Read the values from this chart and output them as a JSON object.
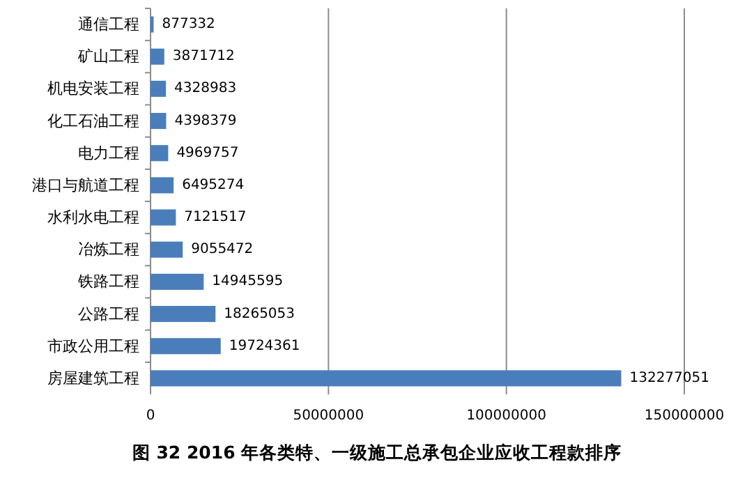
{
  "chart_data": {
    "type": "bar",
    "orientation": "horizontal",
    "title": "图 32 2016 年各类特、一级施工总承包企业应收工程款排序",
    "categories": [
      "通信工程",
      "矿山工程",
      "机电安装工程",
      "化工石油工程",
      "电力工程",
      "港口与航道工程",
      "水利水电工程",
      "冶炼工程",
      "铁路工程",
      "公路工程",
      "市政公用工程",
      "房屋建筑工程"
    ],
    "values": [
      877332,
      3871712,
      4328983,
      4398379,
      4969757,
      6495274,
      7121517,
      9055472,
      14945595,
      18265053,
      19724361,
      132277051
    ],
    "color": "#4a7ebb",
    "xlim": [
      0,
      150000000
    ],
    "xticks": [
      0,
      50000000,
      100000000,
      150000000
    ],
    "grid": "x",
    "data_labels": true
  }
}
